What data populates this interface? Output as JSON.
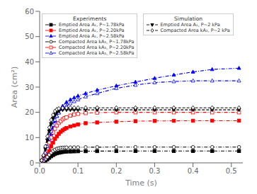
{
  "chart_data": {
    "type": "line",
    "xlabel": "Time (s)",
    "ylabel": "Area (cm²)",
    "xlim": [
      0,
      0.53
    ],
    "ylim": [
      0,
      60
    ],
    "xticks": [
      {
        "value": 0,
        "label": "0.0"
      },
      0.1,
      0.2,
      0.3,
      0.4,
      0.5
    ],
    "yticks": [
      0,
      10,
      20,
      30,
      40,
      50,
      60
    ],
    "grid": false,
    "legend": "upper left",
    "series": [
      {
        "name": "Emptied Area A₁, P~1.78kPa",
        "group": "Experiments",
        "color": "black",
        "marker": "square",
        "line_style": "dashdot",
        "x": [
          0.0,
          0.005,
          0.01,
          0.015,
          0.02,
          0.025,
          0.03,
          0.035,
          0.04,
          0.045,
          0.05,
          0.055,
          0.06,
          0.065,
          0.07,
          0.08,
          0.09,
          0.1,
          0.12,
          0.15,
          0.2,
          0.25,
          0.3,
          0.35,
          0.4,
          0.45,
          0.52
        ],
        "values": [
          0.0,
          0.2,
          0.5,
          0.9,
          1.4,
          2.0,
          2.6,
          3.1,
          3.5,
          3.8,
          4.0,
          4.2,
          4.3,
          4.4,
          4.45,
          4.5,
          4.55,
          4.6,
          4.62,
          4.65,
          4.67,
          4.68,
          4.68,
          4.68,
          4.68,
          4.68,
          4.68
        ]
      },
      {
        "name": "Emptied Area A₁, P~2.20kPa",
        "group": "Experiments",
        "color": "red",
        "marker": "square",
        "line_style": "dashdot",
        "x": [
          0.0,
          0.005,
          0.01,
          0.015,
          0.02,
          0.025,
          0.03,
          0.035,
          0.04,
          0.045,
          0.05,
          0.055,
          0.06,
          0.065,
          0.07,
          0.08,
          0.09,
          0.1,
          0.12,
          0.15,
          0.2,
          0.25,
          0.3,
          0.35,
          0.4,
          0.45,
          0.52
        ],
        "values": [
          0.0,
          0.5,
          1.2,
          2.2,
          3.5,
          5.0,
          6.5,
          8.0,
          9.5,
          10.5,
          11.5,
          12.3,
          12.9,
          13.4,
          13.8,
          14.4,
          14.8,
          15.2,
          15.7,
          16.0,
          16.3,
          16.5,
          16.6,
          16.65,
          16.68,
          16.7,
          16.7
        ]
      },
      {
        "name": "Emptied Area A₁, P~2.58kPa",
        "group": "Experiments",
        "color": "blue",
        "marker": "triangle-up",
        "line_style": "dashdot",
        "x": [
          0.0,
          0.005,
          0.01,
          0.015,
          0.02,
          0.025,
          0.03,
          0.035,
          0.04,
          0.045,
          0.05,
          0.06,
          0.07,
          0.08,
          0.09,
          0.1,
          0.12,
          0.15,
          0.2,
          0.25,
          0.3,
          0.35,
          0.4,
          0.45,
          0.52
        ],
        "values": [
          0.0,
          0.8,
          2.0,
          3.8,
          6.0,
          8.5,
          11.5,
          14.0,
          16.5,
          18.5,
          20.0,
          22.5,
          24.0,
          25.0,
          25.8,
          26.5,
          27.5,
          28.8,
          30.5,
          32.0,
          33.5,
          34.8,
          36.0,
          37.0,
          37.5
        ]
      },
      {
        "name": "Compacted Area kA₂, P~1.78kPa",
        "group": "Experiments",
        "color": "black",
        "marker": "open-circle",
        "line_style": "dashdot",
        "x": [
          0.0,
          0.005,
          0.01,
          0.015,
          0.02,
          0.025,
          0.03,
          0.035,
          0.04,
          0.045,
          0.05,
          0.055,
          0.06,
          0.065,
          0.07,
          0.08,
          0.09,
          0.1,
          0.12,
          0.15,
          0.2,
          0.25,
          0.3,
          0.35,
          0.4,
          0.45,
          0.52
        ],
        "values": [
          0.0,
          0.3,
          0.8,
          1.5,
          2.3,
          3.2,
          4.0,
          4.7,
          5.2,
          5.6,
          5.8,
          5.95,
          6.0,
          6.05,
          6.1,
          6.1,
          6.15,
          6.15,
          6.2,
          6.2,
          6.25,
          6.25,
          6.25,
          6.25,
          6.25,
          6.25,
          6.25
        ]
      },
      {
        "name": "Compacted Area kA₂, P~2.20kPa",
        "group": "Experiments",
        "color": "red",
        "marker": "open-square",
        "line_style": "dashdot",
        "x": [
          0.0,
          0.005,
          0.01,
          0.015,
          0.02,
          0.025,
          0.03,
          0.035,
          0.04,
          0.045,
          0.05,
          0.055,
          0.06,
          0.065,
          0.07,
          0.08,
          0.09,
          0.1,
          0.12,
          0.15,
          0.2,
          0.25,
          0.3,
          0.35,
          0.4,
          0.45,
          0.52
        ],
        "values": [
          0.0,
          0.8,
          2.0,
          3.8,
          5.8,
          8.0,
          10.0,
          12.0,
          13.5,
          14.8,
          15.8,
          16.5,
          17.2,
          17.7,
          18.0,
          18.7,
          19.1,
          19.4,
          19.7,
          19.9,
          20.0,
          20.0,
          20.0,
          20.0,
          20.0,
          20.0,
          20.0
        ]
      },
      {
        "name": "Compacted Area kA₂, P~2.58kPa",
        "group": "Experiments",
        "color": "blue",
        "marker": "open-triangle-up",
        "line_style": "dashdot",
        "x": [
          0.0,
          0.005,
          0.01,
          0.015,
          0.02,
          0.025,
          0.03,
          0.035,
          0.04,
          0.045,
          0.05,
          0.06,
          0.07,
          0.08,
          0.09,
          0.1,
          0.12,
          0.15,
          0.2,
          0.25,
          0.3,
          0.35,
          0.4,
          0.45,
          0.52
        ],
        "values": [
          0.0,
          0.8,
          2.0,
          4.0,
          6.5,
          9.5,
          12.5,
          15.0,
          17.0,
          18.5,
          19.8,
          21.5,
          22.5,
          23.5,
          24.3,
          25.0,
          26.2,
          27.5,
          29.5,
          30.8,
          31.8,
          32.2,
          32.5,
          32.5,
          32.5
        ]
      },
      {
        "name": "Emptied Area A₁, P~2 kPa",
        "group": "Simulation",
        "color": "black",
        "marker": "triangle-down",
        "line_style": "dashed",
        "x": [
          0.0,
          0.005,
          0.01,
          0.015,
          0.02,
          0.025,
          0.03,
          0.035,
          0.04,
          0.045,
          0.05,
          0.06,
          0.07,
          0.08,
          0.09,
          0.1,
          0.12,
          0.15,
          0.2,
          0.25,
          0.3,
          0.35,
          0.4,
          0.45,
          0.52
        ],
        "values": [
          0.0,
          0.8,
          2.5,
          5.5,
          9.0,
          12.5,
          15.5,
          17.5,
          19.0,
          20.0,
          20.5,
          21.0,
          21.0,
          21.0,
          21.0,
          21.0,
          21.0,
          21.0,
          21.0,
          21.0,
          21.0,
          21.0,
          21.0,
          21.0,
          21.0
        ]
      },
      {
        "name": "Compacted Area kA₂, P~2 kPa",
        "group": "Simulation",
        "color": "black",
        "marker": "open-diamond",
        "line_style": "dashed",
        "x": [
          0.0,
          0.005,
          0.01,
          0.015,
          0.02,
          0.025,
          0.03,
          0.035,
          0.04,
          0.045,
          0.05,
          0.06,
          0.07,
          0.08,
          0.09,
          0.1,
          0.12,
          0.15,
          0.2,
          0.25,
          0.3,
          0.35,
          0.4,
          0.45,
          0.52
        ],
        "values": [
          0.0,
          1.0,
          3.0,
          6.5,
          10.5,
          14.0,
          17.0,
          19.0,
          20.5,
          21.2,
          21.5,
          21.7,
          21.8,
          21.8,
          21.8,
          21.8,
          21.8,
          21.8,
          21.8,
          21.8,
          21.8,
          21.8,
          21.8,
          21.8,
          21.8
        ]
      }
    ]
  }
}
